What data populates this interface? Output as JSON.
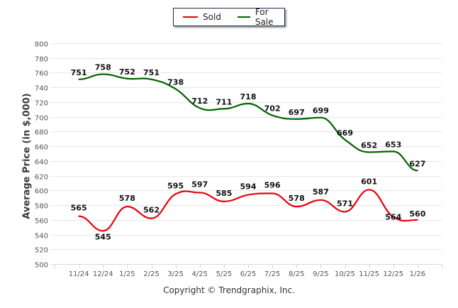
{
  "chart_data": {
    "type": "line",
    "title": "",
    "xlabel": "",
    "ylabel": "Average Price (in $,000)",
    "ylim": [
      500,
      800
    ],
    "ytick_step": 20,
    "grid": true,
    "legend_position": "top-center",
    "categories": [
      "11/24",
      "12/24",
      "1/25",
      "2/25",
      "3/25",
      "4/25",
      "5/25",
      "6/25",
      "7/25",
      "8/25",
      "9/25",
      "10/25",
      "11/25",
      "12/25",
      "1/26"
    ],
    "series": [
      {
        "name": "Sold",
        "color": "#e8000b",
        "values": [
          565,
          545,
          578,
          562,
          595,
          597,
          585,
          594,
          596,
          578,
          587,
          571,
          601,
          564,
          560
        ]
      },
      {
        "name": "For Sale",
        "color": "#006400",
        "values": [
          751,
          758,
          752,
          751,
          738,
          712,
          711,
          718,
          702,
          697,
          699,
          669,
          652,
          653,
          627
        ]
      }
    ]
  },
  "footer": {
    "copyright": "Copyright © Trendgraphix, Inc."
  }
}
